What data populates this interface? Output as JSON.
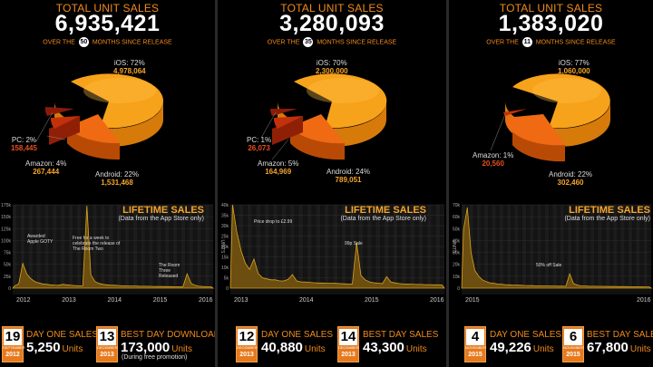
{
  "panels": [
    {
      "total_label": "TOTAL UNIT SALES",
      "total": "6,935,421",
      "over_prefix": "OVER THE",
      "months": "50",
      "over_suffix": "MONTHS SINCE RELEASE",
      "pie": [
        {
          "name": "iOS: 72%",
          "value": "4,978,064"
        },
        {
          "name": "PC: 2%",
          "value": "158,445"
        },
        {
          "name": "Amazon: 4%",
          "value": "267,444"
        },
        {
          "name": "Android: 22%",
          "value": "1,531,468"
        }
      ],
      "chart_title": "LIFETIME SALES",
      "chart_note": "(Data from the App Store only)",
      "stats": [
        {
          "day": "19",
          "month": "SEPTEMBER",
          "year": "2012",
          "label": "DAY ONE SALES",
          "value": "5,250",
          "unit": "Units",
          "note": ""
        },
        {
          "day": "13",
          "month": "DECEMBER",
          "year": "2013",
          "label": "BEST DAY DOWNLOADS",
          "value": "173,000",
          "unit": "Units",
          "note": "(During free promotion)"
        }
      ]
    },
    {
      "total_label": "TOTAL UNIT SALES",
      "total": "3,280,093",
      "over_prefix": "OVER THE",
      "months": "35",
      "over_suffix": "MONTHS SINCE RELEASE",
      "pie": [
        {
          "name": "iOS: 70%",
          "value": "2,300,000"
        },
        {
          "name": "PC: 1%",
          "value": "26,073"
        },
        {
          "name": "Amazon: 5%",
          "value": "164,969"
        },
        {
          "name": "Android: 24%",
          "value": "789,051"
        }
      ],
      "chart_title": "LIFETIME SALES",
      "chart_note": "(Data from the App Store only)",
      "stats": [
        {
          "day": "12",
          "month": "DECEMBER",
          "year": "2013",
          "label": "DAY ONE SALES",
          "value": "40,880",
          "unit": "Units",
          "note": ""
        },
        {
          "day": "14",
          "month": "DECEMBER",
          "year": "2013",
          "label": "BEST DAY SALES",
          "value": "43,300",
          "unit": "Units",
          "note": ""
        }
      ]
    },
    {
      "total_label": "TOTAL UNIT SALES",
      "total": "1,383,020",
      "over_prefix": "OVER THE",
      "months": "11",
      "over_suffix": "MONTHS SINCE RELEASE",
      "pie": [
        {
          "name": "iOS: 77%",
          "value": "1,060,000"
        },
        {
          "name": "Amazon: 1%",
          "value": "20,560"
        },
        {
          "name": "Android: 22%",
          "value": "302,460"
        }
      ],
      "chart_title": "LIFETIME SALES",
      "chart_note": "(Data from the App Store only)",
      "stats": [
        {
          "day": "4",
          "month": "NOVEMBER",
          "year": "2015",
          "label": "DAY ONE SALES",
          "value": "49,226",
          "unit": "Units",
          "note": ""
        },
        {
          "day": "6",
          "month": "NOVEMBER",
          "year": "2015",
          "label": "BEST DAY SALES",
          "value": "67,800",
          "unit": "Units",
          "note": ""
        }
      ]
    }
  ],
  "colors": {
    "ios": "#f7a21b",
    "android": "#ef6a12",
    "amazon": "#c3300c",
    "pc": "#8a1b08",
    "accent": "#f08a1c",
    "line": "#d9a21f"
  },
  "chart_data": [
    {
      "type": "pie",
      "title": "",
      "slices": [
        {
          "label": "iOS",
          "percent": 72,
          "units": 4978064
        },
        {
          "label": "Android",
          "percent": 22,
          "units": 1531468
        },
        {
          "label": "Amazon",
          "percent": 4,
          "units": 267444
        },
        {
          "label": "PC",
          "percent": 2,
          "units": 158445
        }
      ]
    },
    {
      "type": "area",
      "title": "LIFETIME SALES",
      "note": "(Data from the App Store only)",
      "ylabel": "",
      "yticks": [
        "0",
        "25k",
        "50k",
        "75k",
        "100k",
        "125k",
        "150k",
        "175k"
      ],
      "ylim": [
        0,
        175000
      ],
      "xticks": [
        "2012",
        "2013",
        "2014",
        "2015",
        "2016"
      ],
      "annotations": [
        "Awarded Apple GOTY",
        "Free for a week to celebrate the release of The Room Two",
        "The Room Three Released"
      ],
      "series": [
        {
          "values": [
            5000,
            9000,
            52000,
            30000,
            20000,
            14000,
            11000,
            9000,
            8000,
            7000,
            6500,
            6000,
            8000,
            7000,
            6000,
            5500,
            5000,
            5000,
            173000,
            28000,
            14000,
            10000,
            8000,
            7000,
            6000,
            6000,
            5500,
            5000,
            5000,
            4500,
            4500,
            4200,
            4000,
            4000,
            3800,
            3600,
            3500,
            3400,
            3300,
            3200,
            3000,
            3000,
            3200,
            30000,
            10000,
            6000,
            4000,
            3500,
            3000,
            2800
          ]
        }
      ]
    },
    {
      "type": "pie",
      "title": "",
      "slices": [
        {
          "label": "iOS",
          "percent": 70,
          "units": 2300000
        },
        {
          "label": "Android",
          "percent": 24,
          "units": 789051
        },
        {
          "label": "Amazon",
          "percent": 5,
          "units": 164969
        },
        {
          "label": "PC",
          "percent": 1,
          "units": 26073
        }
      ]
    },
    {
      "type": "area",
      "title": "LIFETIME SALES",
      "note": "(Data from the App Store only)",
      "ylabel": "UNITS",
      "yticks": [
        "0",
        "5k",
        "10k",
        "15k",
        "20k",
        "25k",
        "30k",
        "35k",
        "40k"
      ],
      "ylim": [
        0,
        40000
      ],
      "xticks": [
        "2013",
        "2014",
        "2015",
        "2016"
      ],
      "annotations": [
        "Price drop to £2.99",
        "99p Sale"
      ],
      "series": [
        {
          "values": [
            40880,
            27000,
            18000,
            12000,
            9000,
            14000,
            7000,
            5000,
            4500,
            4000,
            4000,
            3500,
            3500,
            4200,
            6500,
            3500,
            3000,
            3000,
            2800,
            2600,
            2500,
            2500,
            2400,
            2400,
            2300,
            2200,
            2100,
            2000,
            2000,
            22000,
            6000,
            4000,
            3000,
            2600,
            2400,
            2200,
            5500,
            3000,
            2500,
            2200,
            2000,
            2000,
            1900,
            1800,
            1800,
            1700,
            1700,
            1600,
            1600,
            1500
          ]
        }
      ]
    },
    {
      "type": "pie",
      "title": "",
      "slices": [
        {
          "label": "iOS",
          "percent": 77,
          "units": 1060000
        },
        {
          "label": "Android",
          "percent": 22,
          "units": 302460
        },
        {
          "label": "Amazon",
          "percent": 1,
          "units": 20560
        }
      ]
    },
    {
      "type": "area",
      "title": "LIFETIME SALES",
      "note": "(Data from the App Store only)",
      "ylabel": "UNITS",
      "yticks": [
        "0",
        "10k",
        "20k",
        "30k",
        "40k",
        "50k",
        "60k",
        "70k"
      ],
      "ylim": [
        0,
        70000
      ],
      "xticks": [
        "2015",
        "2016"
      ],
      "annotations": [
        "50% off Sale"
      ],
      "series": [
        {
          "values": [
            49226,
            67800,
            30000,
            15000,
            10000,
            7000,
            5500,
            4500,
            4000,
            3500,
            3300,
            3000,
            2800,
            2600,
            2500,
            2400,
            2300,
            2200,
            2100,
            2000,
            2000,
            1900,
            1900,
            1800,
            1800,
            1700,
            1700,
            1600,
            12000,
            4000,
            2500,
            2000,
            1800,
            1700,
            1600,
            1600,
            1500,
            1500,
            1400,
            1400,
            1400,
            1300,
            1300,
            1300,
            1200,
            1200,
            1200,
            1200,
            1100,
            1100
          ]
        }
      ]
    }
  ]
}
